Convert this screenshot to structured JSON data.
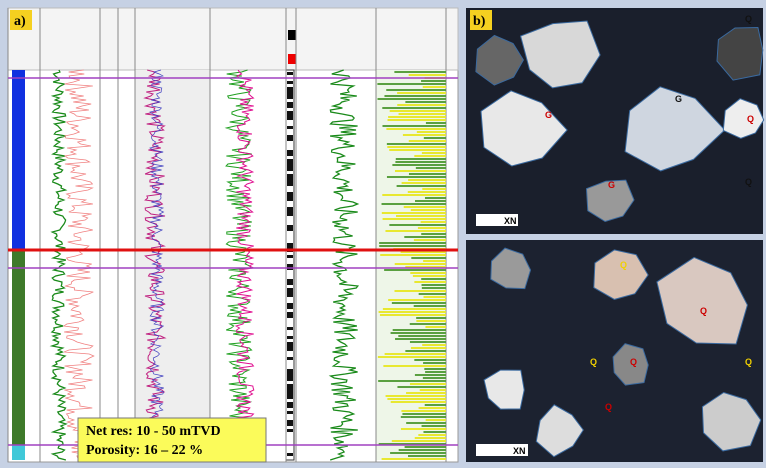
{
  "panel_a": {
    "label": "a)",
    "annotation": {
      "line1": "Net res: 10 - 50 mTVD",
      "line2": "Porosity:  16 – 22 %"
    }
  },
  "panel_b": {
    "label": "b)",
    "top": {
      "scale": "XN",
      "grains": [
        "Q",
        "G",
        "G",
        "Q",
        "Q",
        "G"
      ]
    },
    "bottom": {
      "scale": "XN",
      "grains": [
        "Q",
        "Q",
        "Q",
        "Q",
        "Q",
        "Q"
      ]
    }
  }
}
